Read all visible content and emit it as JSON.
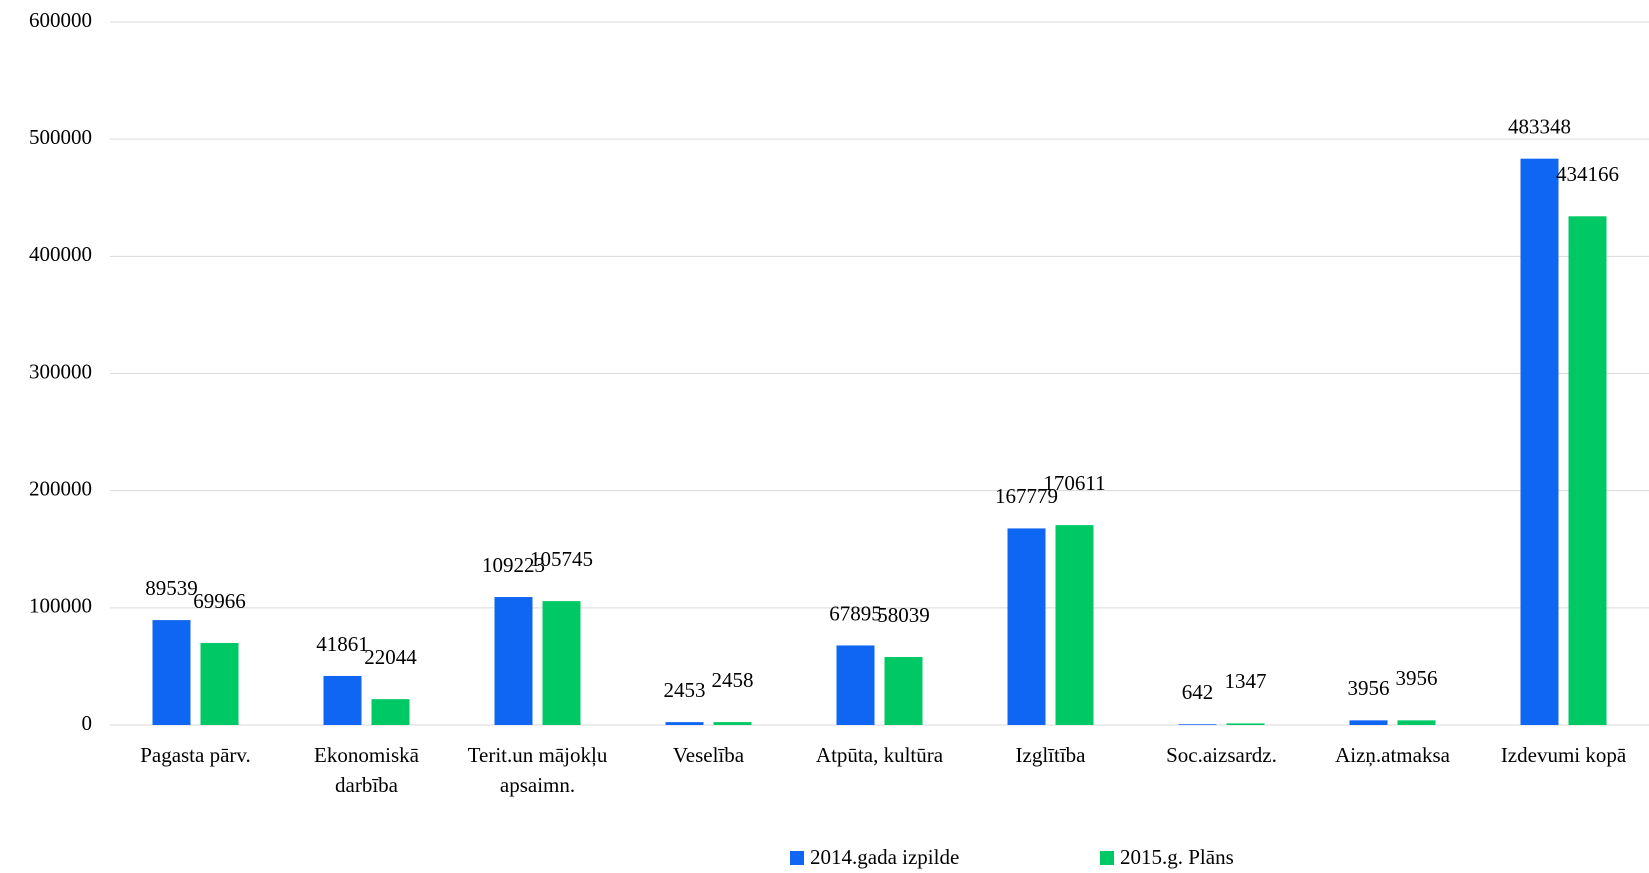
{
  "chart_data": {
    "type": "bar",
    "categories": [
      "Pagasta pārv.",
      "Ekonomiskā darbība",
      "Terit.un mājokļu apsaimn.",
      "Veselība",
      "Atpūta, kultūra",
      "Izglītība",
      "Soc.aizsardz.",
      "Aizņ.atmaksa",
      "Izdevumi kopā"
    ],
    "series": [
      {
        "name": "2014.gada izpilde",
        "color": "#0f66f2",
        "values": [
          89539,
          41861,
          109223,
          2453,
          67895,
          167779,
          642,
          3956,
          483348
        ]
      },
      {
        "name": "2015.g. Plāns",
        "color": "#00c864",
        "values": [
          69966,
          22044,
          105745,
          2458,
          58039,
          170611,
          1347,
          3956,
          434166
        ]
      }
    ],
    "ylim": [
      0,
      600000
    ],
    "yticks": [
      0,
      100000,
      200000,
      300000,
      400000,
      500000,
      600000
    ],
    "grid": true,
    "legend": "bottom"
  }
}
